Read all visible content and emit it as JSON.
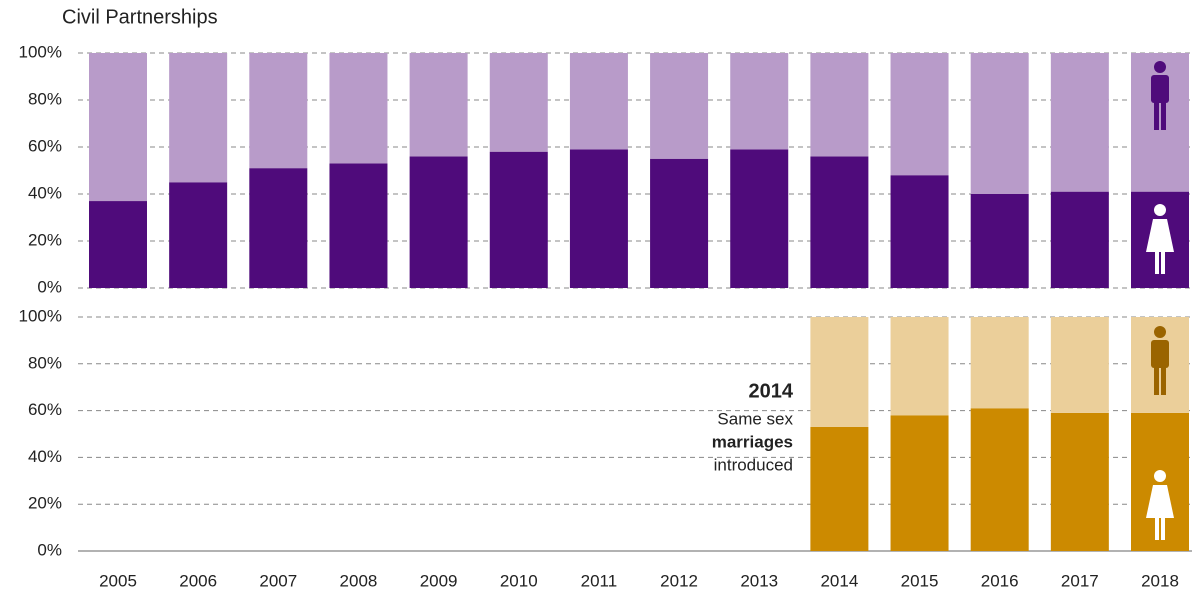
{
  "chart_data": [
    {
      "type": "bar",
      "stacked": true,
      "title": "Civil Partnerships",
      "series": [
        {
          "color": "#4f0b7b",
          "values": [
            37,
            45,
            51,
            53,
            56,
            58,
            59,
            55,
            59,
            56,
            48,
            40,
            41,
            41
          ]
        },
        {
          "color": "#b89bc9",
          "values": [
            63,
            55,
            49,
            47,
            44,
            42,
            41,
            45,
            41,
            44,
            52,
            60,
            59,
            59
          ]
        }
      ],
      "ylim": [
        0,
        100
      ],
      "yticks": [
        {
          "value": 0,
          "label": "0%"
        },
        {
          "value": 20,
          "label": "20%"
        },
        {
          "value": 40,
          "label": "40%"
        },
        {
          "value": 60,
          "label": "60%"
        },
        {
          "value": 80,
          "label": "80%"
        },
        {
          "value": 100,
          "label": "100%"
        }
      ],
      "grid": true
    },
    {
      "type": "bar",
      "stacked": true,
      "categories": [
        "2005",
        "2006",
        "2007",
        "2008",
        "2009",
        "2010",
        "2011",
        "2012",
        "2013",
        "2014",
        "2015",
        "2016",
        "2017",
        "2018"
      ],
      "series": [
        {
          "color": "#cc8a00",
          "values": [
            null,
            null,
            null,
            null,
            null,
            null,
            null,
            null,
            null,
            53,
            58,
            61,
            59,
            59
          ]
        },
        {
          "color": "#ebcf9a",
          "values": [
            null,
            null,
            null,
            null,
            null,
            null,
            null,
            null,
            null,
            47,
            42,
            39,
            41,
            41
          ]
        }
      ],
      "ylim": [
        0,
        100
      ],
      "yticks": [
        {
          "value": 0,
          "label": "0%"
        },
        {
          "value": 20,
          "label": "20%"
        },
        {
          "value": 40,
          "label": "40%"
        },
        {
          "value": 60,
          "label": "60%"
        },
        {
          "value": 80,
          "label": "80%"
        },
        {
          "value": 100,
          "label": "100%"
        }
      ],
      "grid": true,
      "annotation": {
        "heading": "2014",
        "lines": [
          "Same sex",
          "marriages",
          "introduced"
        ]
      }
    }
  ]
}
